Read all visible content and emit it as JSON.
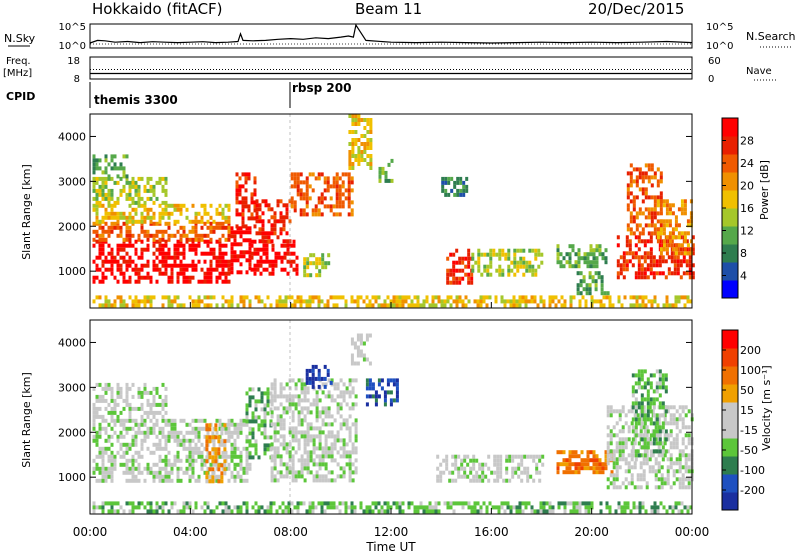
{
  "header": {
    "station": "Hokkaido (fitACF)",
    "beam": "Beam 11",
    "date": "20/Dec/2015"
  },
  "colors": {
    "power_scale": [
      "#0000ff",
      "#1e4fa8",
      "#2e7d4f",
      "#55a84a",
      "#a5c72a",
      "#f0c000",
      "#f09000",
      "#f05a00",
      "#e82000",
      "#ff0000"
    ],
    "velocity_scale": [
      "#1a2fa0",
      "#1e50c0",
      "#2e7d4f",
      "#5cc63a",
      "#c8c8c8",
      "#c8c8c8",
      "#f0a000",
      "#f07000",
      "#f04000",
      "#ff0000"
    ]
  },
  "chart_data": [
    {
      "type": "line",
      "name": "noise-panel",
      "ylabel_left": "N.Sky",
      "ylabel_right": "N.Search",
      "left_ticks": [
        "10^5",
        "10^0"
      ],
      "right_ticks": [
        "10^5",
        "10^0"
      ],
      "series": [
        {
          "name": "N.Sky",
          "x": [
            0,
            0.3,
            0.6,
            1,
            1.5,
            2,
            2.5,
            3,
            3.5,
            4,
            4.5,
            5,
            5.5,
            5.9,
            6.0,
            6.1,
            6.5,
            7,
            7.5,
            8,
            8.5,
            9,
            9.5,
            10,
            10.3,
            10.5,
            10.6,
            11,
            12,
            13,
            14,
            15,
            16,
            17,
            18,
            19,
            20,
            21,
            22,
            23,
            24
          ],
          "y": [
            0.18,
            0.3,
            0.28,
            0.22,
            0.25,
            0.2,
            0.24,
            0.22,
            0.2,
            0.22,
            0.24,
            0.2,
            0.22,
            0.25,
            0.6,
            0.3,
            0.28,
            0.3,
            0.35,
            0.38,
            0.35,
            0.42,
            0.38,
            0.45,
            0.5,
            0.45,
            1.0,
            0.3,
            0.22,
            0.2,
            0.22,
            0.2,
            0.18,
            0.2,
            0.22,
            0.2,
            0.22,
            0.2,
            0.22,
            0.25,
            0.2
          ]
        }
      ]
    },
    {
      "type": "line",
      "name": "freq-panel",
      "ylabel_left": "Freq.",
      "ylabel_units": "[MHz]",
      "ylabel_right": "Nave",
      "left_ticks": [
        "18",
        "8"
      ],
      "right_ticks": [
        "60",
        "0"
      ],
      "series": [
        {
          "name": "Freq.",
          "x": [
            0,
            24
          ],
          "y": [
            10.5,
            10.5
          ]
        },
        {
          "name": "Nave",
          "x": [
            0,
            24
          ],
          "y": [
            26,
            26
          ]
        }
      ]
    },
    {
      "type": "table",
      "name": "cpid",
      "label": "CPID",
      "entries": [
        {
          "start": 0.1,
          "text": "themis 3300"
        },
        {
          "start": 8.0,
          "text": "rbsp 200"
        }
      ]
    },
    {
      "type": "heatmap",
      "name": "power",
      "ylabel": "Slant Range [km]",
      "colorbar_label": "Power [dB]",
      "colorbar_ticks": [
        "4",
        "8",
        "12",
        "16",
        "20",
        "24",
        "28"
      ],
      "xlim": [
        0,
        24
      ],
      "ylim": [
        180,
        4500
      ],
      "yticks": [
        "1000",
        "2000",
        "3000",
        "4000"
      ],
      "regions": [
        {
          "t0": 0.1,
          "t1": 5.6,
          "r0": 800,
          "r1": 1700,
          "level": 9
        },
        {
          "t0": 0.1,
          "t1": 5.6,
          "r0": 1700,
          "r1": 2100,
          "level": 7
        },
        {
          "t0": 0.1,
          "t1": 5.6,
          "r0": 2100,
          "r1": 2500,
          "level": 5
        },
        {
          "t0": 0.1,
          "t1": 3.0,
          "r0": 2500,
          "r1": 3100,
          "level": 4
        },
        {
          "t0": 0.1,
          "t1": 1.5,
          "r0": 3100,
          "r1": 3600,
          "level": 3
        },
        {
          "t0": 5.6,
          "t1": 6.4,
          "r0": 1000,
          "r1": 2000,
          "level": 9
        },
        {
          "t0": 5.8,
          "t1": 6.6,
          "r0": 2000,
          "r1": 3200,
          "level": 8
        },
        {
          "t0": 6.4,
          "t1": 8.2,
          "r0": 900,
          "r1": 1700,
          "level": 9
        },
        {
          "t0": 6.6,
          "t1": 8.0,
          "r0": 1700,
          "r1": 2600,
          "level": 8
        },
        {
          "t0": 8.0,
          "t1": 10.4,
          "r0": 2300,
          "r1": 3200,
          "level": 7
        },
        {
          "t0": 8.5,
          "t1": 9.5,
          "r0": 900,
          "r1": 1400,
          "level": 4
        },
        {
          "t0": 10.3,
          "t1": 11.2,
          "r0": 3300,
          "r1": 4500,
          "level": 5
        },
        {
          "t0": 11.5,
          "t1": 12.0,
          "r0": 3000,
          "r1": 3500,
          "level": 3
        },
        {
          "t0": 14.2,
          "t1": 15.2,
          "r0": 700,
          "r1": 1500,
          "level": 8
        },
        {
          "t0": 15.2,
          "t1": 18.0,
          "r0": 900,
          "r1": 1500,
          "level": 4
        },
        {
          "t0": 14.0,
          "t1": 15.0,
          "r0": 2700,
          "r1": 3100,
          "level": 2
        },
        {
          "t0": 18.6,
          "t1": 20.6,
          "r0": 1100,
          "r1": 1600,
          "level": 3
        },
        {
          "t0": 19.4,
          "t1": 20.6,
          "r0": 500,
          "r1": 1000,
          "level": 3
        },
        {
          "t0": 21.0,
          "t1": 24.0,
          "r0": 900,
          "r1": 1800,
          "level": 8
        },
        {
          "t0": 21.4,
          "t1": 22.8,
          "r0": 1800,
          "r1": 3400,
          "level": 7
        },
        {
          "t0": 22.6,
          "t1": 24.0,
          "r0": 1400,
          "r1": 2600,
          "level": 6
        },
        {
          "t0": 0.1,
          "t1": 24.0,
          "r0": 200,
          "r1": 460,
          "level": 5
        }
      ]
    },
    {
      "type": "heatmap",
      "name": "velocity",
      "ylabel": "Slant Range [km]",
      "colorbar_label": "Velocity [m s⁻¹]",
      "colorbar_ticks": [
        "200",
        "100",
        "50",
        "15",
        "-15",
        "-50",
        "-100",
        "-200"
      ],
      "xlim": [
        0,
        24
      ],
      "ylim": [
        180,
        4500
      ],
      "yticks": [
        "1000",
        "2000",
        "3000",
        "4000"
      ],
      "xticks": [
        "00:00",
        "04:00",
        "08:00",
        "12:00",
        "16:00",
        "20:00",
        "00:00"
      ],
      "xlabel": "Time UT",
      "regions": [
        {
          "t0": 0.1,
          "t1": 6.4,
          "r0": 900,
          "r1": 2300,
          "level": 4
        },
        {
          "t0": 0.1,
          "t1": 3.0,
          "r0": 2300,
          "r1": 3100,
          "level": 4
        },
        {
          "t0": 4.6,
          "t1": 5.4,
          "r0": 900,
          "r1": 2200,
          "level": 6
        },
        {
          "t0": 6.2,
          "t1": 7.2,
          "r0": 1400,
          "r1": 3000,
          "level": 3
        },
        {
          "t0": 7.2,
          "t1": 10.6,
          "r0": 900,
          "r1": 3200,
          "level": 4
        },
        {
          "t0": 8.6,
          "t1": 9.6,
          "r0": 3000,
          "r1": 3500,
          "level": 0
        },
        {
          "t0": 10.4,
          "t1": 11.2,
          "r0": 3500,
          "r1": 4200,
          "level": 4
        },
        {
          "t0": 11.0,
          "t1": 12.2,
          "r0": 2600,
          "r1": 3200,
          "level": 1
        },
        {
          "t0": 13.8,
          "t1": 18.0,
          "r0": 900,
          "r1": 1500,
          "level": 4
        },
        {
          "t0": 18.6,
          "t1": 20.8,
          "r0": 1100,
          "r1": 1600,
          "level": 7
        },
        {
          "t0": 20.6,
          "t1": 24.0,
          "r0": 800,
          "r1": 2600,
          "level": 4
        },
        {
          "t0": 21.6,
          "t1": 23.0,
          "r0": 1400,
          "r1": 3400,
          "level": 3
        },
        {
          "t0": 0.1,
          "t1": 24.0,
          "r0": 200,
          "r1": 460,
          "level": 3
        }
      ]
    }
  ]
}
